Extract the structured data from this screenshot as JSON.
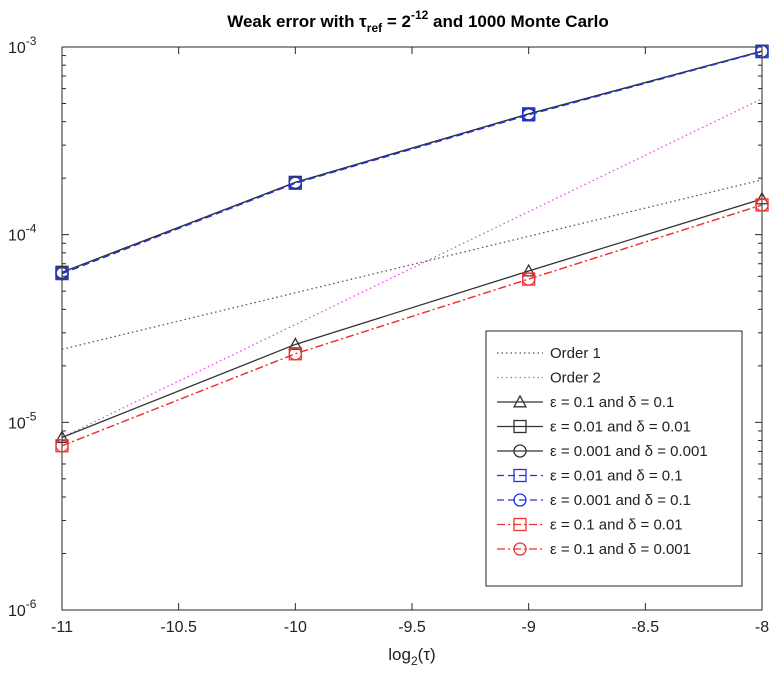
{
  "chart_data": {
    "type": "line",
    "title": {
      "prefix": "Weak error with τ",
      "sub": "ref",
      "mid": " = 2",
      "sup": "-12",
      "suffix": " and 1000 Monte Carlo"
    },
    "xlabel": {
      "before": "log",
      "sub": "2",
      "after": "(τ)"
    },
    "ylabel": "",
    "xlim": [
      -11,
      -8
    ],
    "ylim": [
      1e-06,
      0.001
    ],
    "yscale": "log",
    "grid": false,
    "legend_position": "bottom-right",
    "xticks": [
      -11,
      -10.5,
      -10,
      -9.5,
      -9,
      -8.5,
      -8
    ],
    "xtick_labels": [
      "-11",
      "-10.5",
      "-10",
      "-9.5",
      "-9",
      "-8.5",
      "-8"
    ],
    "yticks": [
      {
        "value": 1e-06,
        "base": "10",
        "exp": "-6"
      },
      {
        "value": 1e-05,
        "base": "10",
        "exp": "-5"
      },
      {
        "value": 0.0001,
        "base": "10",
        "exp": "-4"
      },
      {
        "value": 0.001,
        "base": "10",
        "exp": "-3"
      }
    ],
    "x": [
      -11,
      -10,
      -9,
      -8
    ],
    "series": [
      {
        "name": "Order 1",
        "x": [
          -11,
          -8
        ],
        "values": [
          2.45e-05,
          0.000196
        ],
        "color": "#555555",
        "dash": "dotted",
        "marker": "none"
      },
      {
        "name": "Order 2",
        "x": [
          -11,
          -8
        ],
        "values": [
          8.3e-06,
          0.00053
        ],
        "color": "#ee44ee",
        "dash": "dotted",
        "marker": "none"
      },
      {
        "name": "ε = 0.1 and δ = 0.1",
        "x": [
          -11,
          -10,
          -9,
          -8
        ],
        "values": [
          8.3e-06,
          2.6e-05,
          6.4e-05,
          0.000155
        ],
        "color": "#333333",
        "dash": "solid",
        "marker": "triangle"
      },
      {
        "name": "ε = 0.01 and δ = 0.01",
        "x": [
          -11,
          -10,
          -9,
          -8
        ],
        "values": [
          6.3e-05,
          0.00019,
          0.00044,
          0.00095
        ],
        "color": "#333333",
        "dash": "solid",
        "marker": "square"
      },
      {
        "name": "ε = 0.001 and δ = 0.001",
        "x": [
          -11,
          -10,
          -9,
          -8
        ],
        "values": [
          6.3e-05,
          0.00019,
          0.00044,
          0.00095
        ],
        "color": "#333333",
        "dash": "solid",
        "marker": "circle"
      },
      {
        "name": "ε = 0.01 and δ = 0.1",
        "x": [
          -11,
          -10,
          -9,
          -8
        ],
        "values": [
          6.2e-05,
          0.000188,
          0.000435,
          0.000945
        ],
        "color": "#2233dd",
        "dash": "dashed",
        "marker": "square"
      },
      {
        "name": "ε = 0.001 and δ = 0.1",
        "x": [
          -11,
          -10,
          -9,
          -8
        ],
        "values": [
          6.2e-05,
          0.000188,
          0.000435,
          0.000945
        ],
        "color": "#2233dd",
        "dash": "dashed",
        "marker": "circle"
      },
      {
        "name": "ε = 0.1 and δ = 0.01",
        "x": [
          -11,
          -10,
          -9,
          -8
        ],
        "values": [
          7.5e-06,
          2.32e-05,
          5.8e-05,
          0.000144
        ],
        "color": "#ee3333",
        "dash": "dashdot",
        "marker": "square"
      },
      {
        "name": "ε = 0.1 and δ = 0.001",
        "x": [
          -11,
          -10,
          -9,
          -8
        ],
        "values": [
          7.5e-06,
          2.32e-05,
          5.8e-05,
          0.000144
        ],
        "color": "#ee3333",
        "dash": "dashdot",
        "marker": "circle"
      }
    ]
  }
}
